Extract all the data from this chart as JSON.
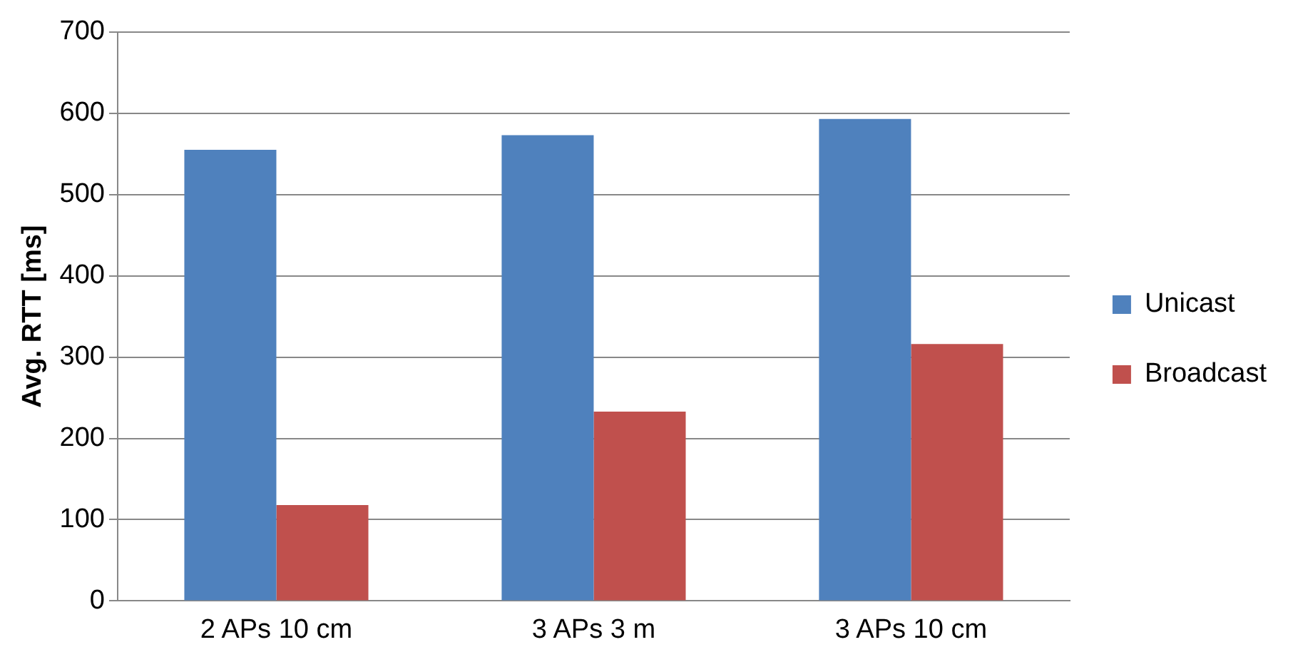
{
  "chart_data": {
    "type": "bar",
    "ylabel": "Avg. RTT [ms]",
    "categories": [
      "2 APs 10 cm",
      "3 APs 3 m",
      "3 APs 10 cm"
    ],
    "series": [
      {
        "name": "Unicast",
        "color": "#4f81bd",
        "values": [
          555,
          573,
          593
        ]
      },
      {
        "name": "Broadcast",
        "color": "#c0504d",
        "values": [
          118,
          233,
          316
        ]
      }
    ],
    "ylim": [
      0,
      700
    ],
    "yticks": [
      0,
      100,
      200,
      300,
      400,
      500,
      600,
      700
    ],
    "grid": "y",
    "legend": "right"
  }
}
